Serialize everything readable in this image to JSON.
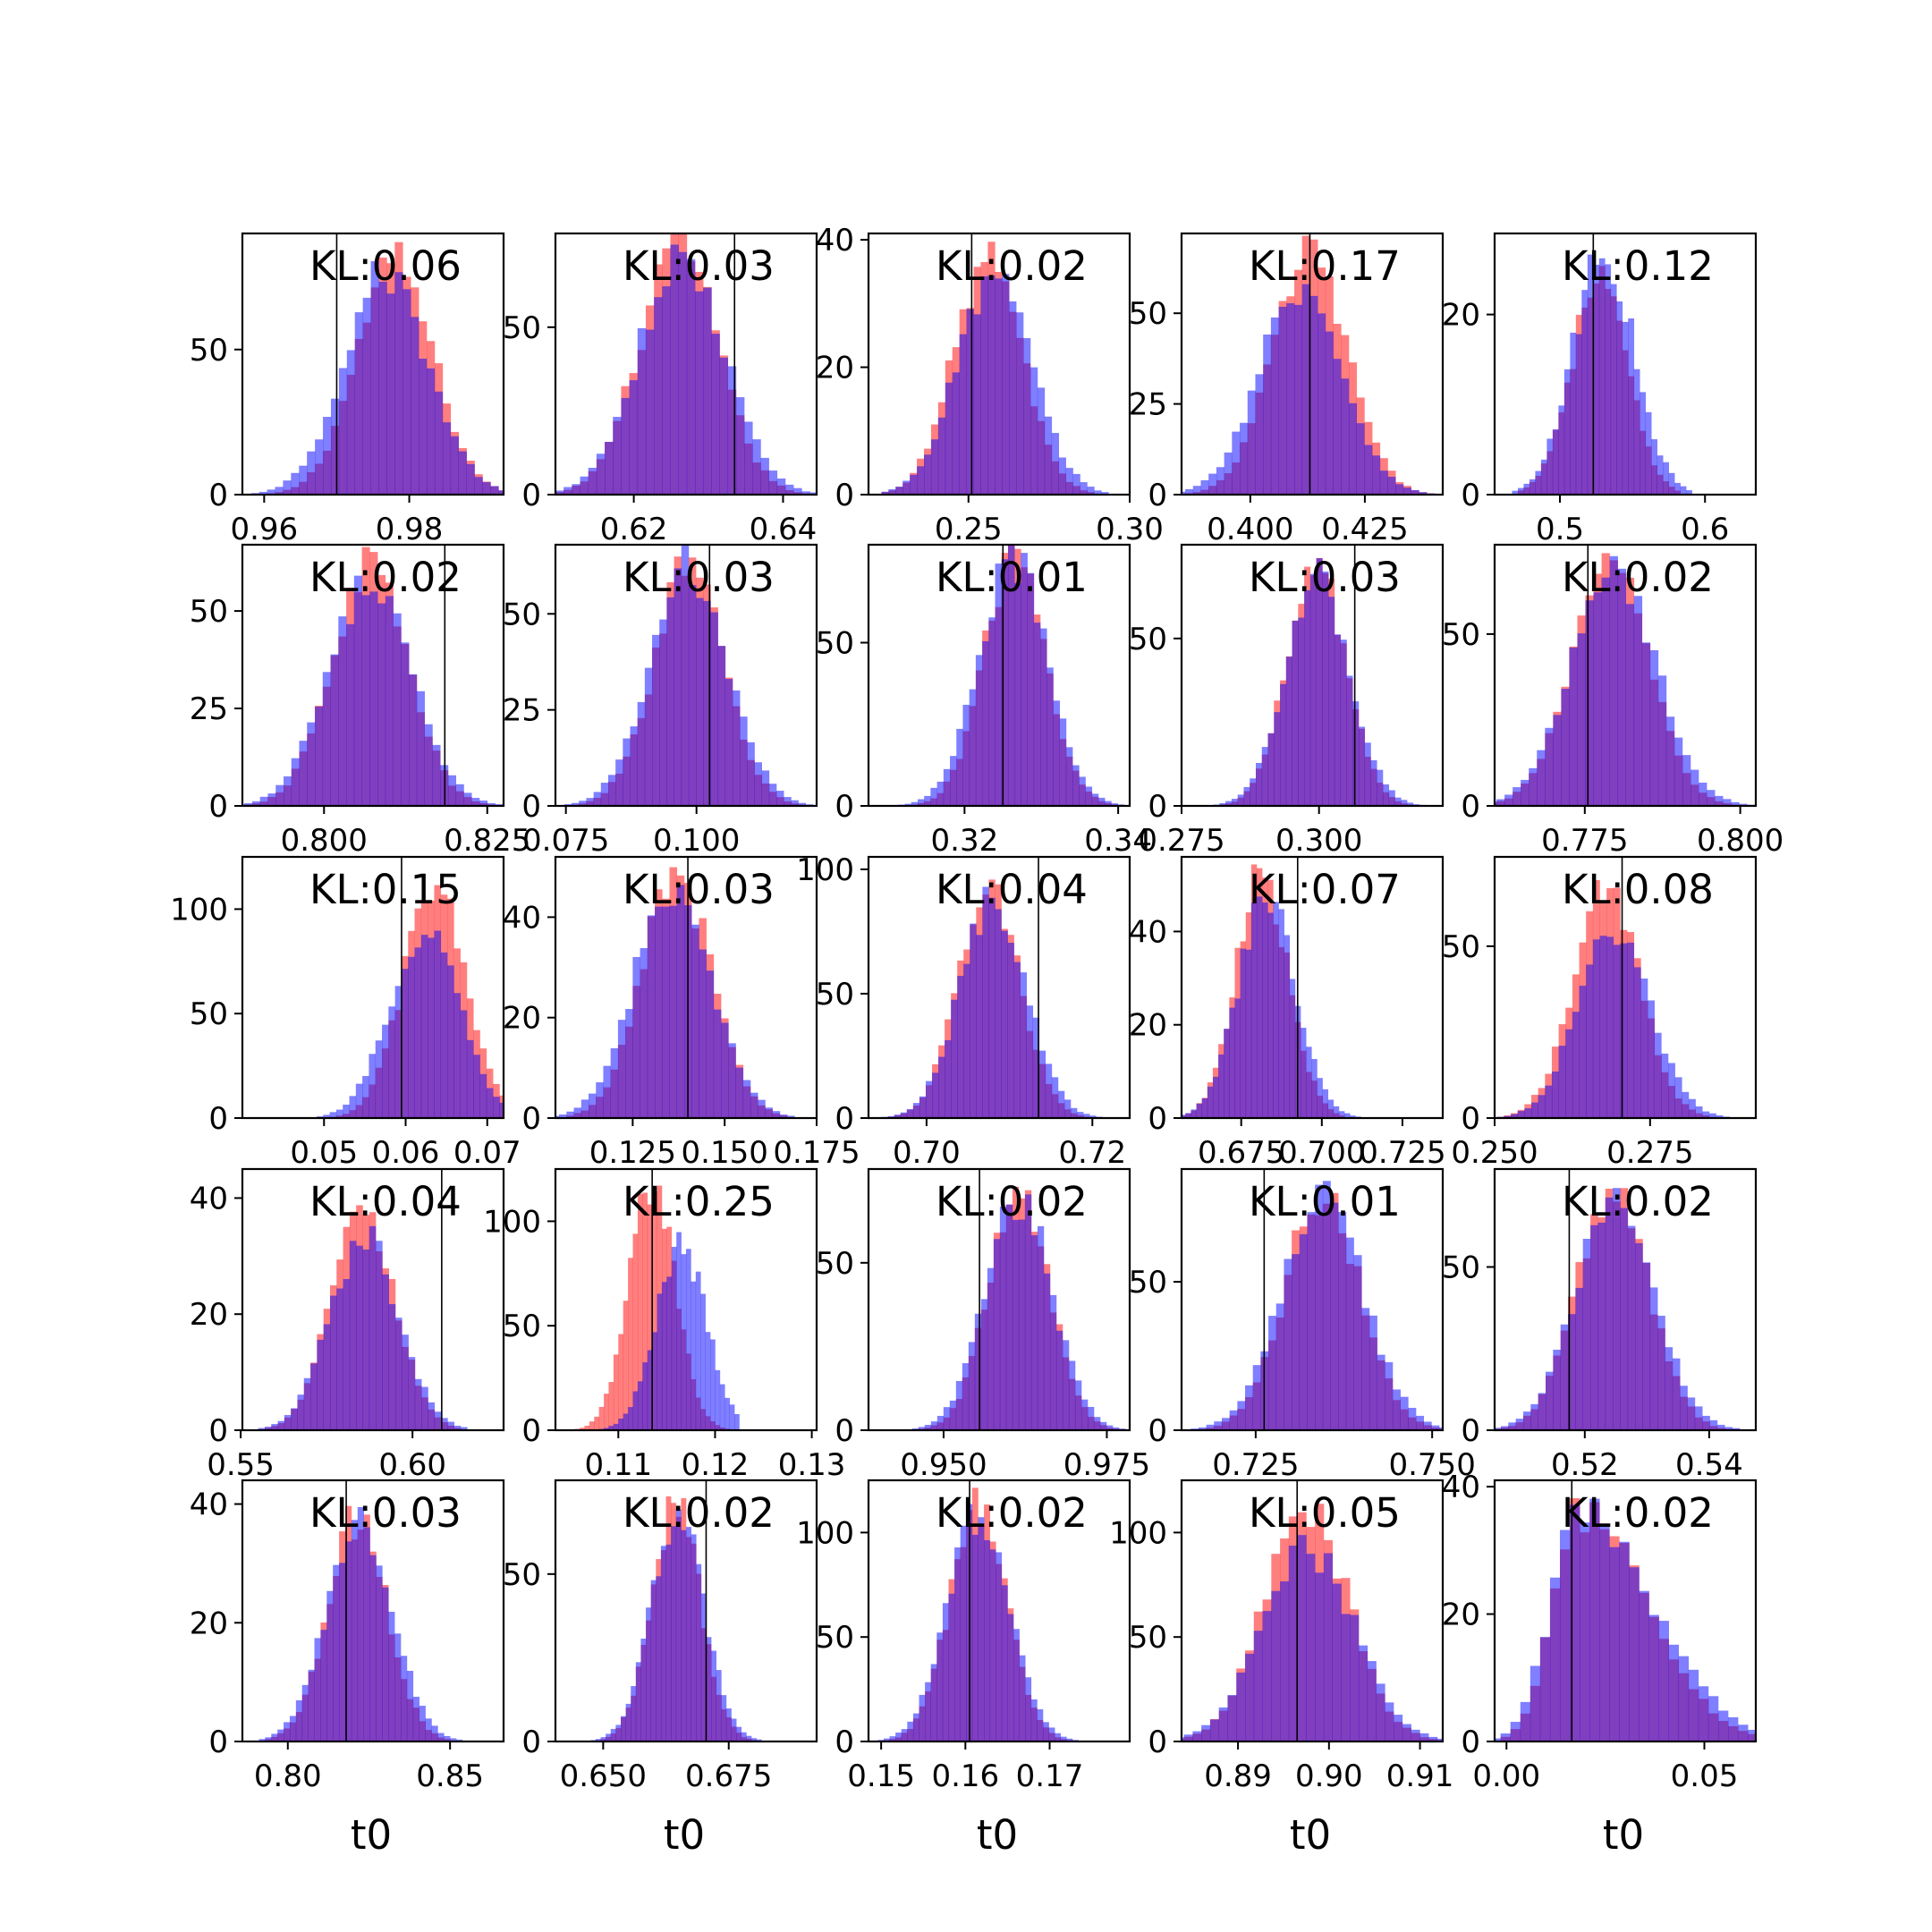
{
  "chart_data": {
    "type": "histogram_grid",
    "rows": 5,
    "cols": 5,
    "xlabel": "t0",
    "overlay": {
      "fill_a": "#ff0000",
      "fill_b": "#0000ff",
      "alpha": 0.5,
      "marker_line": "#000000"
    },
    "panels": [
      {
        "kl": "KL:0.06",
        "mean": 0.978,
        "sd": 0.0055,
        "truth": 0.97,
        "xlim": [
          0.957,
          0.993
        ],
        "xticks": [
          0.96,
          0.98
        ],
        "ylim": [
          0,
          90
        ],
        "yticks": [
          0,
          50
        ],
        "peak_a": 80,
        "peak_b": 76,
        "shift_b": -0.0012
      },
      {
        "kl": "KL:0.03",
        "mean": 0.626,
        "sd": 0.0055,
        "truth": 0.6335,
        "xlim": [
          0.6095,
          0.6445
        ],
        "xticks": [
          0.62,
          0.64
        ],
        "ylim": [
          0,
          78
        ],
        "yticks": [
          0,
          50
        ],
        "peak_a": 74,
        "peak_b": 70,
        "shift_b": 0.0004
      },
      {
        "kl": "KL:0.02",
        "mean": 0.256,
        "sd": 0.011,
        "truth": 0.251,
        "xlim": [
          0.219,
          0.3
        ],
        "xticks": [
          0.25,
          0.3
        ],
        "ylim": [
          0,
          41
        ],
        "yticks": [
          0,
          20,
          40
        ],
        "peak_a": 37,
        "peak_b": 34,
        "shift_b": 0.002
      },
      {
        "kl": "KL:0.17",
        "mean": 0.413,
        "sd": 0.0085,
        "truth": 0.413,
        "xlim": [
          0.385,
          0.442
        ],
        "xticks": [
          0.4,
          0.425
        ],
        "ylim": [
          0,
          72
        ],
        "yticks": [
          0,
          25,
          50
        ],
        "peak_a": 66,
        "peak_b": 58,
        "shift_b": -0.002
      },
      {
        "kl": "KL:0.12",
        "mean": 0.527,
        "sd": 0.02,
        "truth": 0.523,
        "xlim": [
          0.455,
          0.635
        ],
        "xticks": [
          0.5,
          0.6
        ],
        "ylim": [
          0,
          29
        ],
        "yticks": [
          0,
          20
        ],
        "peak_a": 24,
        "peak_b": 27,
        "shift_b": 0.003
      },
      {
        "kl": "KL:0.02",
        "mean": 0.807,
        "sd": 0.006,
        "truth": 0.8185,
        "xlim": [
          0.7875,
          0.8275
        ],
        "xticks": [
          0.8,
          0.825
        ],
        "ylim": [
          0,
          67
        ],
        "yticks": [
          0,
          25,
          50
        ],
        "peak_a": 62,
        "peak_b": 58,
        "shift_b": 0
      },
      {
        "kl": "KL:0.03",
        "mean": 0.0985,
        "sd": 0.007,
        "truth": 0.1025,
        "xlim": [
          0.073,
          0.123
        ],
        "xticks": [
          0.075,
          0.1
        ],
        "ylim": [
          0,
          68
        ],
        "yticks": [
          0,
          25,
          50
        ],
        "peak_a": 62,
        "peak_b": 62,
        "shift_b": 0
      },
      {
        "kl": "KL:0.01",
        "mean": 0.3265,
        "sd": 0.0042,
        "truth": 0.325,
        "xlim": [
          0.3075,
          0.3415
        ],
        "xticks": [
          0.32,
          0.34
        ],
        "ylim": [
          0,
          80
        ],
        "yticks": [
          0,
          50
        ],
        "peak_a": 76,
        "peak_b": 76,
        "shift_b": -0.0003
      },
      {
        "kl": "KL:0.03",
        "mean": 0.2995,
        "sd": 0.0055,
        "truth": 0.3065,
        "xlim": [
          0.275,
          0.3225
        ],
        "xticks": [
          0.275,
          0.3
        ],
        "ylim": [
          0,
          78
        ],
        "yticks": [
          0,
          50
        ],
        "peak_a": 72,
        "peak_b": 68,
        "shift_b": 0.0002
      },
      {
        "kl": "KL:0.02",
        "mean": 0.779,
        "sd": 0.0065,
        "truth": 0.7755,
        "xlim": [
          0.7605,
          0.8025
        ],
        "xticks": [
          0.775,
          0.8
        ],
        "ylim": [
          0,
          76
        ],
        "yticks": [
          0,
          50
        ],
        "peak_a": 70,
        "peak_b": 68,
        "shift_b": 0.0005
      },
      {
        "kl": "KL:0.15",
        "mean": 0.0635,
        "sd": 0.004,
        "truth": 0.0595,
        "xlim": [
          0.04,
          0.072
        ],
        "xticks": [
          0.05,
          0.06,
          0.07
        ],
        "ylim": [
          0,
          125
        ],
        "yticks": [
          0,
          50,
          100
        ],
        "peak_a": 110,
        "peak_b": 92,
        "shift_b": -0.0012
      },
      {
        "kl": "KL:0.03",
        "mean": 0.137,
        "sd": 0.01,
        "truth": 0.14,
        "xlim": [
          0.104,
          0.175
        ],
        "xticks": [
          0.125,
          0.15,
          0.175
        ],
        "ylim": [
          0,
          52
        ],
        "yticks": [
          0,
          20,
          40
        ],
        "peak_a": 48,
        "peak_b": 46,
        "shift_b": -0.001
      },
      {
        "kl": "KL:0.04",
        "mean": 0.7075,
        "sd": 0.0038,
        "truth": 0.7135,
        "xlim": [
          0.693,
          0.7245
        ],
        "xticks": [
          0.7,
          0.72
        ],
        "ylim": [
          0,
          105
        ],
        "yticks": [
          0,
          50,
          100
        ],
        "peak_a": 96,
        "peak_b": 88,
        "shift_b": 0.0005
      },
      {
        "kl": "KL:0.07",
        "mean": 0.6815,
        "sd": 0.0085,
        "truth": 0.6925,
        "xlim": [
          0.6565,
          0.7375
        ],
        "xticks": [
          0.675,
          0.7,
          0.725
        ],
        "ylim": [
          0,
          56
        ],
        "yticks": [
          0,
          20,
          40
        ],
        "peak_a": 52,
        "peak_b": 47,
        "shift_b": 0.0015
      },
      {
        "kl": "KL:0.08",
        "mean": 0.268,
        "sd": 0.0055,
        "truth": 0.2705,
        "xlim": [
          0.25,
          0.292
        ],
        "xticks": [
          0.25,
          0.275
        ],
        "ylim": [
          0,
          76
        ],
        "yticks": [
          0,
          50
        ],
        "peak_a": 68,
        "peak_b": 55,
        "shift_b": 0.0012
      },
      {
        "kl": "KL:0.04",
        "mean": 0.5855,
        "sd": 0.0095,
        "truth": 0.6085,
        "xlim": [
          0.5505,
          0.6265
        ],
        "xticks": [
          0.55,
          0.6
        ],
        "ylim": [
          0,
          45
        ],
        "yticks": [
          0,
          20,
          40
        ],
        "peak_a": 38,
        "peak_b": 33,
        "shift_b": 0.0005
      },
      {
        "kl": "KL:0.25",
        "mean": 0.1135,
        "sd": 0.0025,
        "truth": 0.1135,
        "xlim": [
          0.1035,
          0.1305
        ],
        "xticks": [
          0.11,
          0.12,
          0.13
        ],
        "ylim": [
          0,
          125
        ],
        "yticks": [
          0,
          50,
          100
        ],
        "peak_a": 118,
        "peak_b": 88,
        "shift_b": 0.003
      },
      {
        "kl": "KL:0.02",
        "mean": 0.9615,
        "sd": 0.0048,
        "truth": 0.9555,
        "xlim": [
          0.9385,
          0.9785
        ],
        "xticks": [
          0.95,
          0.975
        ],
        "ylim": [
          0,
          78
        ],
        "yticks": [
          0,
          50
        ],
        "peak_a": 72,
        "peak_b": 70,
        "shift_b": 0
      },
      {
        "kl": "KL:0.01",
        "mean": 0.7345,
        "sd": 0.0055,
        "truth": 0.7262,
        "xlim": [
          0.7145,
          0.7515
        ],
        "xticks": [
          0.725,
          0.75
        ],
        "ylim": [
          0,
          88
        ],
        "yticks": [
          0,
          50
        ],
        "peak_a": 80,
        "peak_b": 78,
        "shift_b": 0
      },
      {
        "kl": "KL:0.02",
        "mean": 0.5245,
        "sd": 0.006,
        "truth": 0.5175,
        "xlim": [
          0.5055,
          0.5475
        ],
        "xticks": [
          0.52,
          0.54
        ],
        "ylim": [
          0,
          80
        ],
        "yticks": [
          0,
          50
        ],
        "peak_a": 74,
        "peak_b": 70,
        "shift_b": 0.0003
      },
      {
        "kl": "KL:0.03",
        "mean": 0.8215,
        "sd": 0.0095,
        "truth": 0.818,
        "xlim": [
          0.786,
          0.8665
        ],
        "xticks": [
          0.8,
          0.85
        ],
        "ylim": [
          0,
          44
        ],
        "yticks": [
          0,
          20,
          40
        ],
        "peak_a": 38,
        "peak_b": 38,
        "shift_b": 0.0005
      },
      {
        "kl": "KL:0.02",
        "mean": 0.6645,
        "sd": 0.005,
        "truth": 0.6705,
        "xlim": [
          0.6405,
          0.6925
        ],
        "xticks": [
          0.65,
          0.675
        ],
        "ylim": [
          0,
          78
        ],
        "yticks": [
          0,
          50
        ],
        "peak_a": 72,
        "peak_b": 68,
        "shift_b": 0.0003
      },
      {
        "kl": "KL:0.02",
        "mean": 0.1615,
        "sd": 0.0035,
        "truth": 0.1605,
        "xlim": [
          0.1485,
          0.1795
        ],
        "xticks": [
          0.15,
          0.16,
          0.17
        ],
        "ylim": [
          0,
          125
        ],
        "yticks": [
          0,
          50,
          100
        ],
        "peak_a": 112,
        "peak_b": 108,
        "shift_b": 0
      },
      {
        "kl": "KL:0.05",
        "mean": 0.8975,
        "sd": 0.0048,
        "truth": 0.8965,
        "xlim": [
          0.8838,
          0.9125
        ],
        "xticks": [
          0.89,
          0.9,
          0.91
        ],
        "ylim": [
          0,
          125
        ],
        "yticks": [
          0,
          50,
          100
        ],
        "peak_a": 112,
        "peak_b": 92,
        "shift_b": 0.0002
      },
      {
        "kl": "KL:0.02",
        "mean": 0.0185,
        "sd": 0.0125,
        "truth": 0.0165,
        "xlim": [
          -0.003,
          0.063
        ],
        "xticks": [
          0.0,
          0.05
        ],
        "ylim": [
          0,
          41
        ],
        "yticks": [
          0,
          20,
          40
        ],
        "peak_a": 36,
        "peak_b": 36,
        "shift_b": 0,
        "skew": 0.8
      }
    ]
  }
}
